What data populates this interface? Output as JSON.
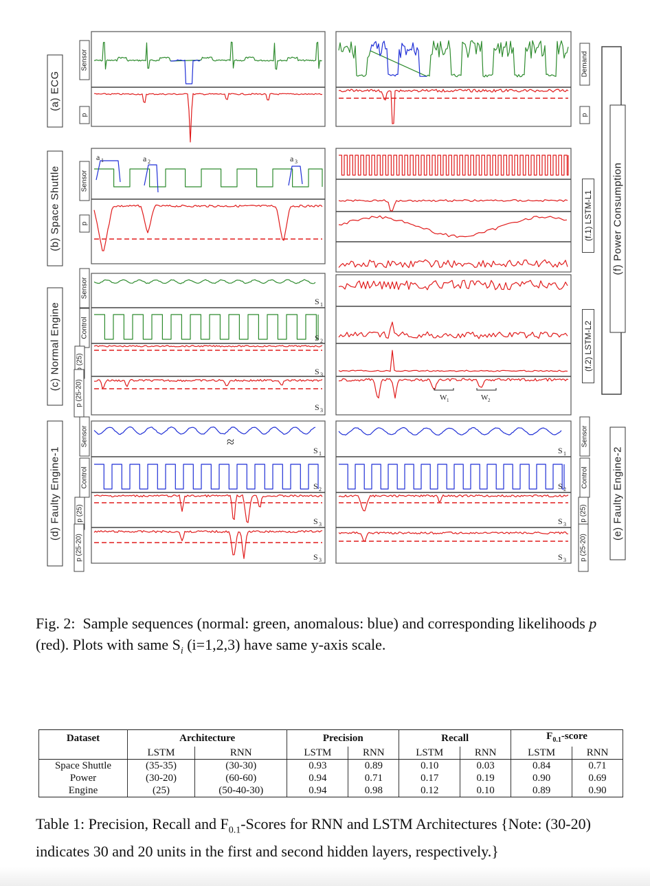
{
  "figure": {
    "group_labels": {
      "a": "(a) ECG",
      "b": "(b) Space Shuttle",
      "c": "(c) Normal Engine",
      "d": "(d) Faulty Engine-1",
      "e": "(e) Faulty Engine-2",
      "f": "(f) Power Consumption",
      "f1": "(f.1) LSTM-L1",
      "f2": "(f.2) LSTM-L2"
    },
    "side_labels": {
      "sensor": "Sensor",
      "p": "p",
      "control": "Control",
      "p25": "p (25)",
      "p2520": "p (25-20)",
      "demand": "Demand"
    },
    "annotations": {
      "a1": "a1",
      "a2": "a2",
      "a3": "a3",
      "s1": "S1",
      "s2": "S2",
      "s3": "S3",
      "w1": "W1",
      "w2": "W2",
      "approx": "≈"
    },
    "colors": {
      "normal": "#2e8b2e",
      "anomalous": "#1f2fd6",
      "likelihood": "#e01b1b"
    }
  },
  "caption_fig": {
    "prefix": "Fig. 2:",
    "text1": "Sample sequences (normal: green, anomalous: blue) and corresponding likelihoods ",
    "p": "p",
    "text2": " (red).  Plots with same S",
    "sub": "i",
    "text3": " (i=1,2,3) have same y-axis scale."
  },
  "table": {
    "headers": {
      "dataset": "Dataset",
      "architecture": "Architecture",
      "precision": "Precision",
      "recall": "Recall",
      "fscore": "F0.1-score"
    },
    "fscore_main": "F",
    "fscore_sub": "0.1",
    "fscore_rest": "-score",
    "sub_headers": [
      "LSTM",
      "RNN",
      "LSTM",
      "RNN",
      "LSTM",
      "RNN",
      "LSTM",
      "RNN"
    ],
    "rows": [
      [
        "Space Shuttle",
        "(35-35)",
        "(30-30)",
        "0.93",
        "0.89",
        "0.10",
        "0.03",
        "0.84",
        "0.71"
      ],
      [
        "Power",
        "(30-20)",
        "(60-60)",
        "0.94",
        "0.71",
        "0.17",
        "0.19",
        "0.90",
        "0.69"
      ],
      [
        "Engine",
        "(25)",
        "(50-40-30)",
        "0.94",
        "0.98",
        "0.12",
        "0.10",
        "0.89",
        "0.90"
      ]
    ]
  },
  "caption_table": {
    "prefix": "Table 1:",
    "text1": " Precision, Recall and F",
    "sub": "0.1",
    "text2": "-Scores for RNN and LSTM Architectures {Note: (30-20) indicates 30 and 20 units in the first and second hidden layers, respectively.}"
  }
}
